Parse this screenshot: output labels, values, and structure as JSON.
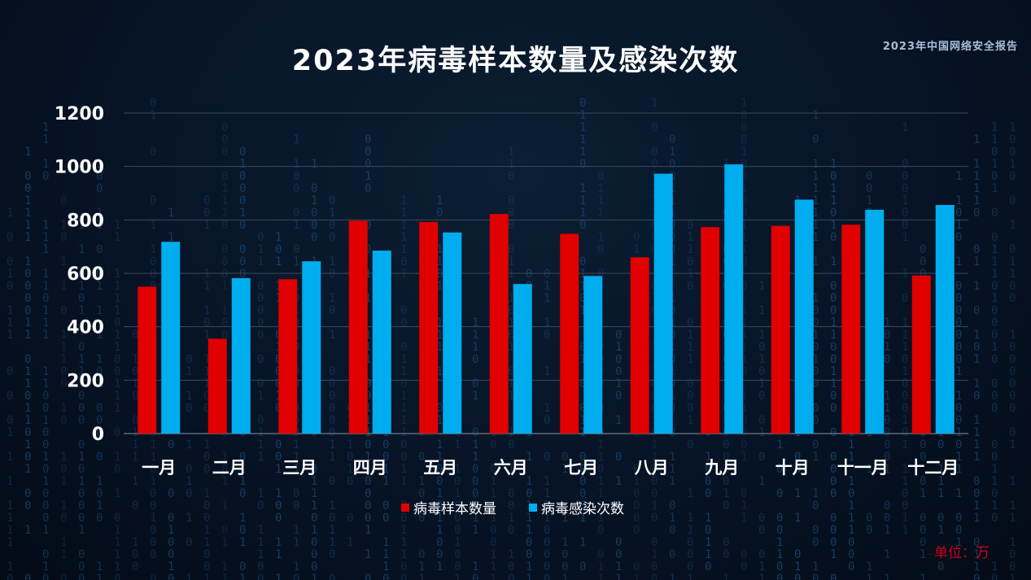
{
  "header": {
    "title": "2023年病毒样本数量及感染次数",
    "report_tag": "2023年中国网络安全报告"
  },
  "unit_label": "单位：万",
  "colors": {
    "sample": "#e00000",
    "infection": "#00adee",
    "grid": "#3a4a5c",
    "text": "#ffffff",
    "rain": "#1e4a75"
  },
  "chart_data": {
    "type": "bar",
    "title": "2023年病毒样本数量及感染次数",
    "xlabel": "",
    "ylabel": "",
    "ylim": [
      0,
      1200
    ],
    "yticks": [
      0,
      200,
      400,
      600,
      800,
      1000,
      1200
    ],
    "grid": true,
    "legend_position": "bottom",
    "categories": [
      "一月",
      "二月",
      "三月",
      "四月",
      "五月",
      "六月",
      "七月",
      "八月",
      "九月",
      "十月",
      "十一月",
      "十二月"
    ],
    "series": [
      {
        "name": "病毒样本数量",
        "color": "#e00000",
        "values": [
          550,
          355,
          578,
          797,
          792,
          822,
          748,
          660,
          773,
          778,
          782,
          592
        ]
      },
      {
        "name": "病毒感染次数",
        "color": "#00adee",
        "values": [
          718,
          582,
          645,
          685,
          753,
          560,
          590,
          973,
          1008,
          876,
          838,
          856
        ]
      }
    ]
  }
}
